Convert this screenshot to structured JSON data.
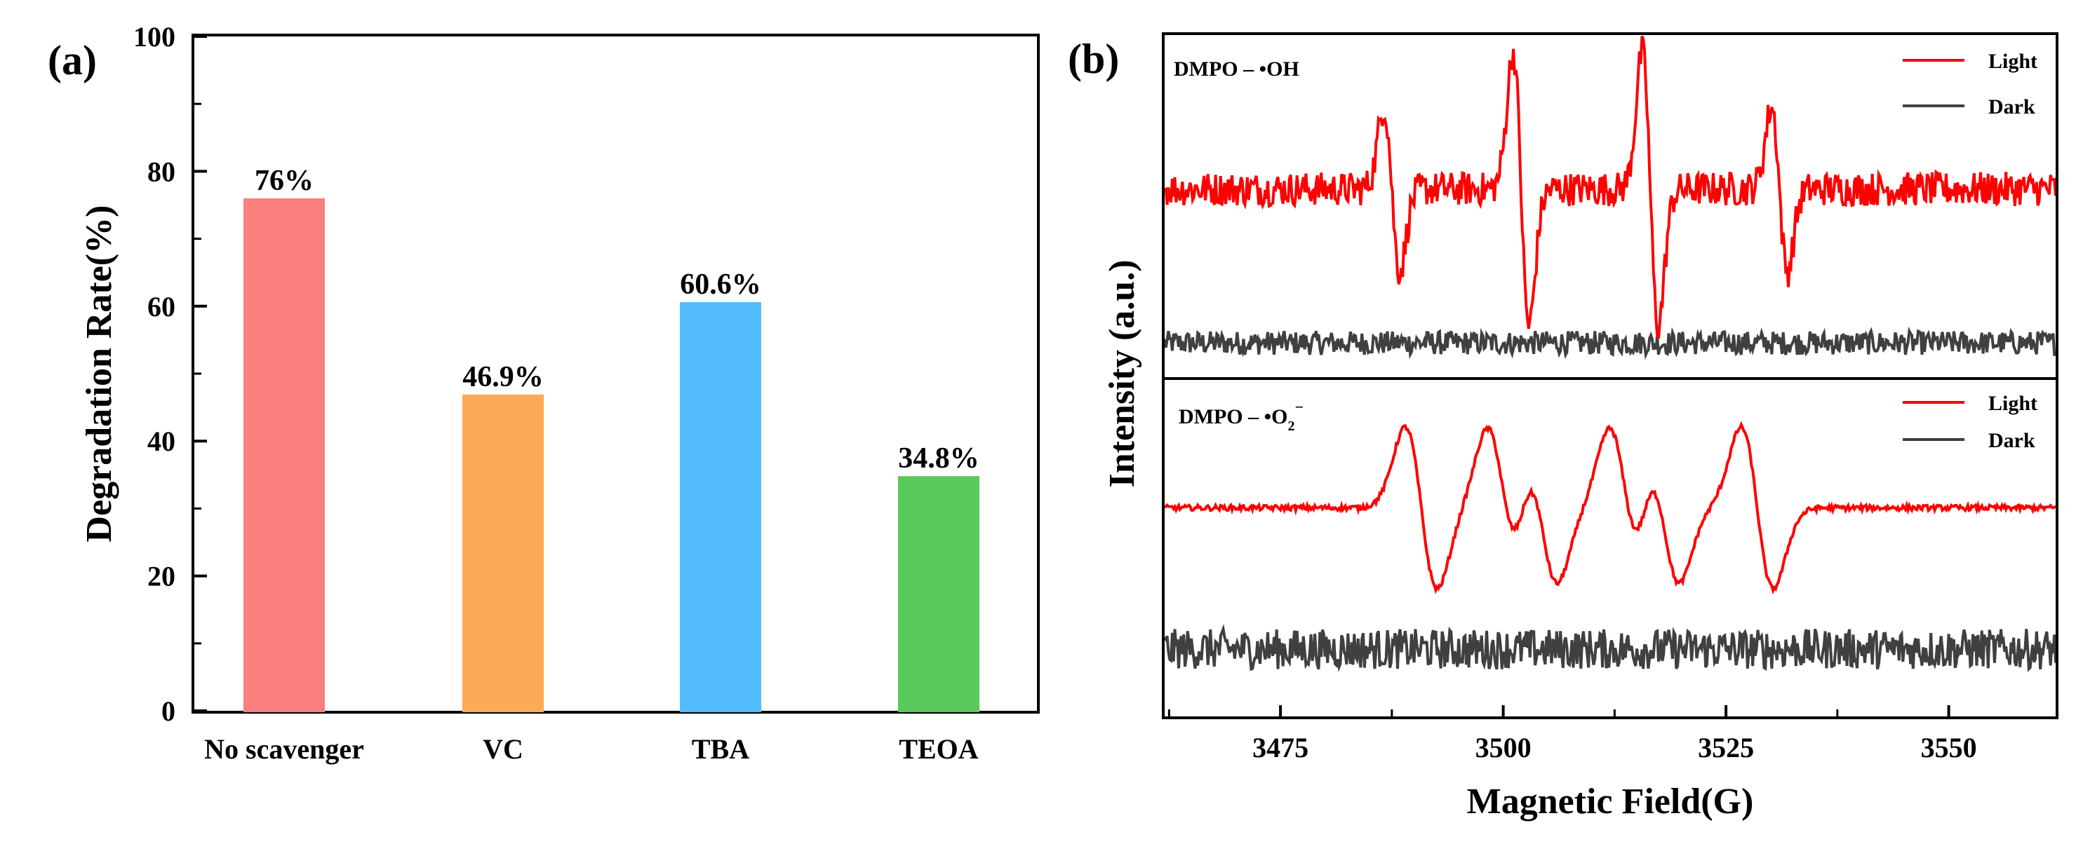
{
  "panels": {
    "a": "(a)",
    "b": "(b)"
  },
  "chart_data": [
    {
      "type": "bar",
      "title": "",
      "categories": [
        "No scavenger",
        "VC",
        "TBA",
        "TEOA"
      ],
      "values": [
        76,
        46.9,
        60.6,
        34.8
      ],
      "data_labels": [
        "76%",
        "46.9%",
        "60.6%",
        "34.8%"
      ],
      "colors": [
        "#fa8080",
        "#fbaa58",
        "#53bcfd",
        "#58c95a"
      ],
      "ylabel": "Degradation Rate(%)",
      "xlabel": "",
      "ylim": [
        0,
        100
      ],
      "yticks": [
        0,
        20,
        40,
        60,
        80,
        100
      ],
      "ytick_labels": [
        "0",
        "20",
        "40",
        "60",
        "80",
        "100"
      ]
    },
    {
      "type": "line",
      "title": "",
      "xlabel": "Magnetic Field(G)",
      "ylabel": "Intensity (a.u.)",
      "xlim": [
        3462,
        3562
      ],
      "xticks": [
        3475,
        3500,
        3525,
        3550
      ],
      "xtick_labels": [
        "3475",
        "3500",
        "3525",
        "3550"
      ],
      "subpanels": [
        {
          "label_main": "DMPO – •OH",
          "label_sub": "",
          "label_sup": "",
          "legend": [
            "Light",
            "Dark"
          ],
          "series": [
            {
              "name": "Light",
              "color": "#ff0000",
              "baseline": 0.55,
              "noise": 0.05,
              "peaks": [
                {
                  "x": 3487.5,
                  "a": 0.6
                },
                {
                  "x": 3502,
                  "a": 1.0
                },
                {
                  "x": 3516.5,
                  "a": 1.0
                },
                {
                  "x": 3531,
                  "a": 0.6
                }
              ],
              "peak_width": 0.9
            },
            {
              "name": "Dark",
              "color": "#404040",
              "baseline": 0.1,
              "noise": 0.035
            }
          ]
        },
        {
          "label_main": "DMPO – •O",
          "label_sub": "2",
          "label_sup": "−",
          "legend": [
            "Light",
            "Dark"
          ],
          "series": [
            {
              "name": "Light",
              "color": "#ff0000",
              "baseline": 0.62,
              "noise": 0.008,
              "peaks": [
                {
                  "x": 3490.8,
                  "a": 0.6
                },
                {
                  "x": 3500,
                  "a": 0.58
                },
                {
                  "x": 3504.3,
                  "a": 0.55
                },
                {
                  "x": 3513.7,
                  "a": 0.58
                },
                {
                  "x": 3518,
                  "a": 0.55
                },
                {
                  "x": 3528.5,
                  "a": 0.6
                }
              ],
              "peak_width": 1.8
            },
            {
              "name": "Dark",
              "color": "#404040",
              "baseline": 0.2,
              "noise": 0.06
            }
          ]
        }
      ]
    }
  ]
}
